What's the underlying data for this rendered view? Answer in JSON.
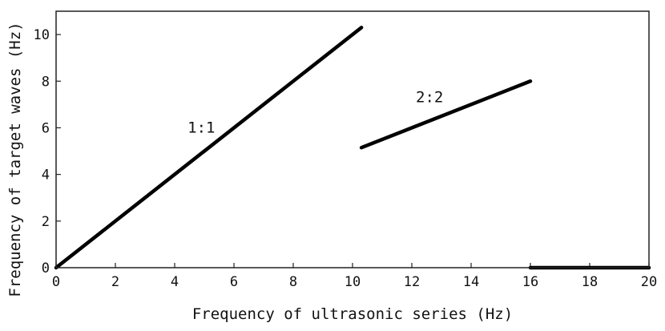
{
  "chart_data": {
    "type": "line",
    "xlabel": "Frequency of ultrasonic series (Hz)",
    "ylabel": "Frequency of target waves (Hz)",
    "xlim": [
      0,
      20
    ],
    "ylim": [
      0,
      11
    ],
    "xticks": [
      0,
      2,
      4,
      6,
      8,
      10,
      12,
      14,
      16,
      18,
      20
    ],
    "yticks": [
      0,
      2,
      4,
      6,
      8,
      10
    ],
    "grid": false,
    "series": [
      {
        "name": "1:1",
        "x": [
          0,
          10.3
        ],
        "y": [
          0,
          10.3
        ]
      },
      {
        "name": "2:2",
        "x": [
          10.3,
          16
        ],
        "y": [
          5.15,
          8
        ]
      },
      {
        "name": "",
        "x": [
          16,
          20
        ],
        "y": [
          0,
          0
        ]
      }
    ],
    "annotations": [
      {
        "text": "1:1",
        "x": 4.9,
        "y": 5.8
      },
      {
        "text": "2:2",
        "x": 12.6,
        "y": 7.1
      }
    ]
  }
}
